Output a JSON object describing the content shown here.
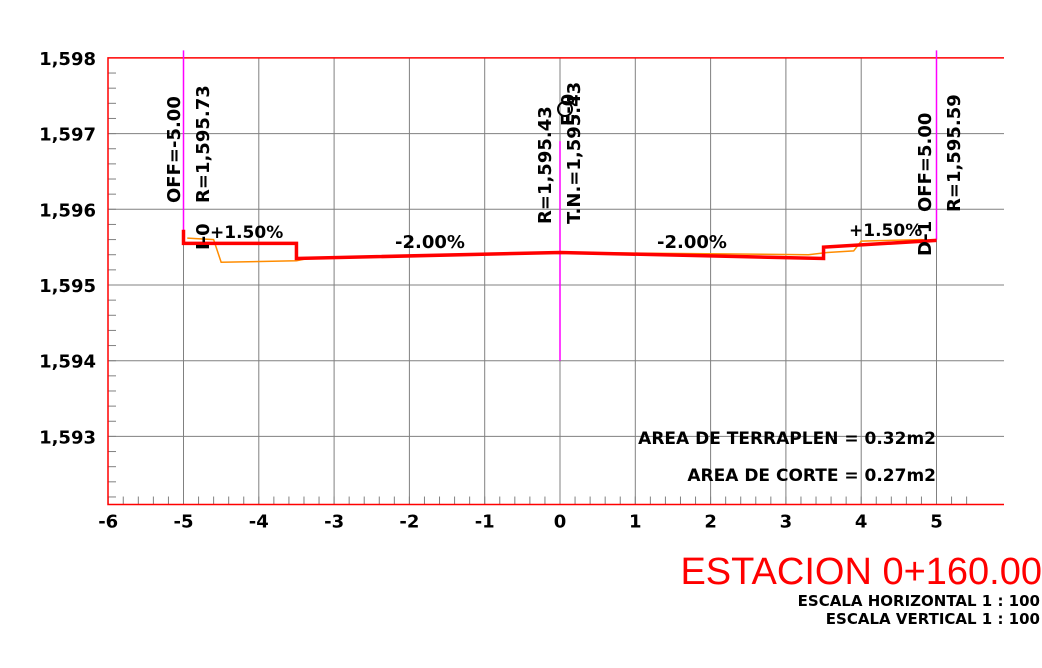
{
  "chart_data": {
    "type": "cross-section",
    "x_ticks": [
      -6,
      -5,
      -4,
      -3,
      -2,
      -1,
      0,
      1,
      2,
      3,
      4,
      5
    ],
    "x_tick_labels": [
      "-6",
      "-5",
      "-4",
      "-3",
      "-2",
      "-1",
      "0",
      "1",
      "2",
      "3",
      "4",
      "5"
    ],
    "y_ticks": [
      1598,
      1597,
      1596,
      1595,
      1594,
      1593
    ],
    "y_tick_labels": [
      "1,598",
      "1,597",
      "1,596",
      "1,595",
      "1,594",
      "1,593"
    ],
    "xlim": [
      -6,
      5.6
    ],
    "ylim": [
      1592.1,
      1598
    ],
    "grid": true,
    "series": [
      {
        "role": "design-road-surface",
        "color": "#ff0000",
        "points": [
          [
            -5.0,
            1595.73
          ],
          [
            -5.0,
            1595.55
          ],
          [
            -3.5,
            1595.55
          ],
          [
            -3.5,
            1595.35
          ],
          [
            0.0,
            1595.43
          ],
          [
            3.5,
            1595.35
          ],
          [
            3.5,
            1595.5
          ],
          [
            5.0,
            1595.59
          ]
        ]
      },
      {
        "role": "natural-ground",
        "color": "#ff8c00",
        "points": [
          [
            -4.95,
            1595.62
          ],
          [
            -4.6,
            1595.6
          ],
          [
            -4.5,
            1595.3
          ],
          [
            -3.5,
            1595.32
          ],
          [
            -3.3,
            1595.36
          ],
          [
            0.0,
            1595.43
          ],
          [
            3.3,
            1595.4
          ],
          [
            3.55,
            1595.43
          ],
          [
            3.9,
            1595.45
          ],
          [
            4.0,
            1595.58
          ],
          [
            4.8,
            1595.6
          ],
          [
            5.0,
            1595.58
          ]
        ]
      },
      {
        "role": "offset-marker-lines",
        "color": "#ff00ff",
        "lines": [
          {
            "x": -5.0,
            "y_range": [
              1595.6,
              1598.1
            ]
          },
          {
            "x": 0.0,
            "y_range": [
              1594.0,
              1596.9
            ]
          },
          {
            "x": 5.0,
            "y_range": [
              1595.6,
              1598.1
            ]
          }
        ]
      }
    ],
    "annotations": {
      "left_offset": "OFF=-5.00",
      "left_elevation": "R=1,595.73",
      "left_point": "I-0",
      "left_slope": "+1.50%",
      "left_lane_slope": "-2.00%",
      "center_elevation": "R=1,595.43",
      "center_ground": "T.N.=1,595.43",
      "center_point": "E-0",
      "right_lane_slope": "-2.00%",
      "right_slope": "+1.50%",
      "right_offset": "OFF=5.00",
      "right_elevation": "R=1,595.59",
      "right_point": "D-1",
      "fill_area": "AREA DE TERRAPLEN = 0.32m2",
      "cut_area": "AREA DE CORTE = 0.27m2"
    },
    "colors": {
      "frame": "#ff0000",
      "grid": "#808080",
      "design": "#ff0000",
      "ground": "#ff8c00",
      "markers": "#ff00ff"
    }
  },
  "title": {
    "station": "ESTACION 0+160.00",
    "scale_horizontal": "ESCALA HORIZONTAL 1 : 100",
    "scale_vertical": "ESCALA VERTICAL 1 : 100"
  }
}
